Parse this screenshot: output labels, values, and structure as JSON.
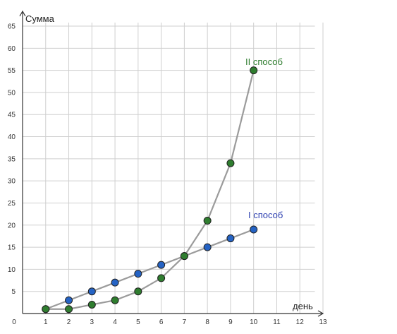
{
  "chart_data": {
    "type": "line",
    "title": "",
    "xlabel": "день",
    "ylabel": "Сумма",
    "xlim": [
      0,
      13
    ],
    "ylim": [
      0,
      65
    ],
    "xticks": [
      1,
      2,
      3,
      4,
      5,
      6,
      7,
      8,
      9,
      10,
      11,
      12,
      13
    ],
    "yticks": [
      5,
      10,
      15,
      20,
      25,
      30,
      35,
      40,
      45,
      50,
      55,
      60,
      65
    ],
    "origin_label": "0",
    "grid": true,
    "series": [
      {
        "name": "I способ",
        "color": "#2563c4",
        "label_color": "#2d3fb0",
        "x": [
          1,
          2,
          3,
          4,
          5,
          6,
          7,
          8,
          9,
          10
        ],
        "values": [
          1,
          3,
          5,
          7,
          9,
          11,
          13,
          15,
          17,
          19
        ]
      },
      {
        "name": "II способ",
        "color": "#2f7d2f",
        "label_color": "#2f7d2f",
        "x": [
          1,
          2,
          3,
          4,
          5,
          6,
          7,
          8,
          9,
          10
        ],
        "values": [
          1,
          1,
          2,
          3,
          5,
          8,
          13,
          21,
          34,
          55
        ]
      }
    ]
  }
}
